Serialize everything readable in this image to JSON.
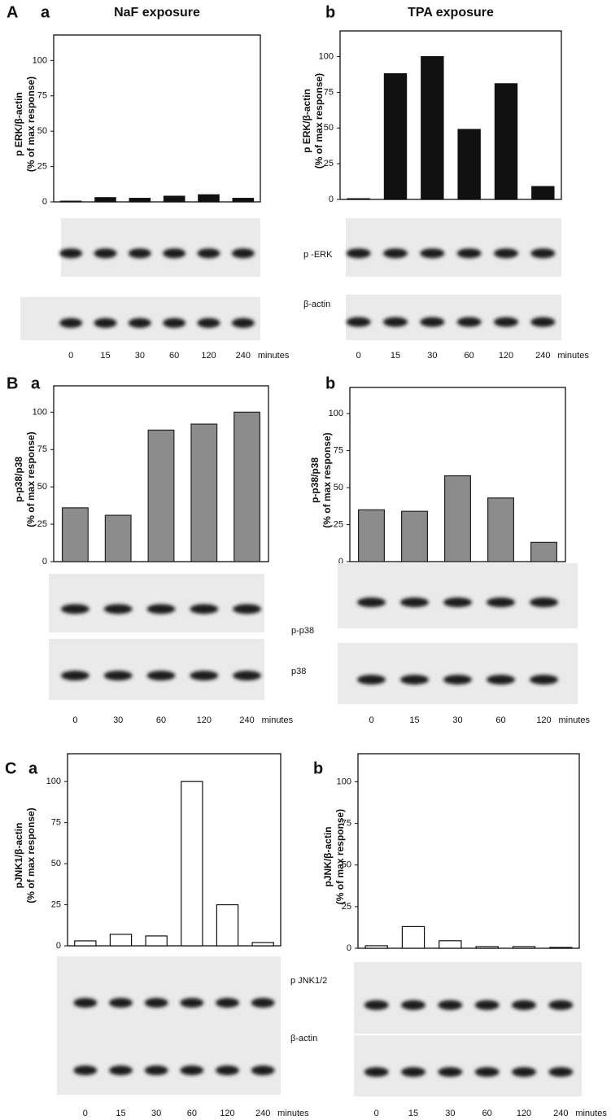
{
  "chart_data": [
    {
      "type": "bar",
      "panel": "A",
      "subpanel": "a",
      "title": "NaF exposure",
      "ylabel": [
        "p ERK/β-actin",
        "(% of max response)"
      ],
      "categories": [
        "0",
        "15",
        "30",
        "60",
        "120",
        "240"
      ],
      "values": [
        0.5,
        3,
        2.5,
        4,
        5,
        2.5
      ],
      "color": "#111111",
      "stroke": "#111111",
      "ylim": [
        0,
        110
      ],
      "yticks": [
        0,
        25,
        50,
        75,
        100
      ],
      "xlabel": "minutes",
      "blot_labels": [
        "p -ERK",
        "β-actin"
      ]
    },
    {
      "type": "bar",
      "subpanel": "b",
      "title": "TPA exposure",
      "ylabel": [
        "p ERK/β-actin",
        "(% of max response)"
      ],
      "categories": [
        "0",
        "15",
        "30",
        "60",
        "120",
        "240"
      ],
      "values": [
        0.5,
        88,
        100,
        49,
        81,
        9
      ],
      "color": "#111111",
      "stroke": "#111111",
      "ylim": [
        0,
        110
      ],
      "yticks": [
        0,
        25,
        50,
        75,
        100
      ],
      "xlabel": "minutes"
    },
    {
      "type": "bar",
      "panel": "B",
      "subpanel": "a",
      "ylabel": [
        "p-p38/p38",
        "(% of max response)"
      ],
      "categories": [
        "0",
        "30",
        "60",
        "120",
        "240"
      ],
      "values": [
        36,
        31,
        88,
        92,
        100
      ],
      "color": "#8c8c8c",
      "stroke": "#222222",
      "ylim": [
        0,
        110
      ],
      "yticks": [
        0,
        25,
        50,
        75,
        100
      ],
      "xlabel": "minutes",
      "blot_labels": [
        "p-p38",
        "p38"
      ]
    },
    {
      "type": "bar",
      "subpanel": "b",
      "ylabel": [
        "p-p38/p38",
        "(% of max response)"
      ],
      "categories": [
        "0",
        "15",
        "30",
        "60",
        "120"
      ],
      "values": [
        35,
        34,
        58,
        43,
        13
      ],
      "color": "#8c8c8c",
      "stroke": "#222222",
      "ylim": [
        0,
        110
      ],
      "yticks": [
        0,
        25,
        50,
        75,
        100
      ],
      "xlabel": "minutes"
    },
    {
      "type": "bar",
      "panel": "C",
      "subpanel": "a",
      "ylabel": [
        "pJNK1/β-actin",
        "(% of max response)"
      ],
      "categories": [
        "0",
        "15",
        "30",
        "60",
        "120",
        "240"
      ],
      "values": [
        3,
        7,
        6,
        100,
        25,
        2
      ],
      "color": "#ffffff",
      "stroke": "#111111",
      "ylim": [
        0,
        110
      ],
      "yticks": [
        0,
        25,
        50,
        75,
        100
      ],
      "xlabel": "minutes",
      "blot_labels": [
        "p JNK1/2",
        "β-actin"
      ]
    },
    {
      "type": "bar",
      "subpanel": "b",
      "ylabel": [
        "pJNK/β-actin",
        "(% of max response)"
      ],
      "categories": [
        "0",
        "15",
        "30",
        "60",
        "120",
        "240"
      ],
      "values": [
        1.5,
        13,
        4.5,
        1,
        1,
        0.5
      ],
      "color": "#ffffff",
      "stroke": "#111111",
      "ylim": [
        0,
        110
      ],
      "yticks": [
        0,
        25,
        50,
        75,
        100
      ],
      "xlabel": "minutes"
    }
  ]
}
